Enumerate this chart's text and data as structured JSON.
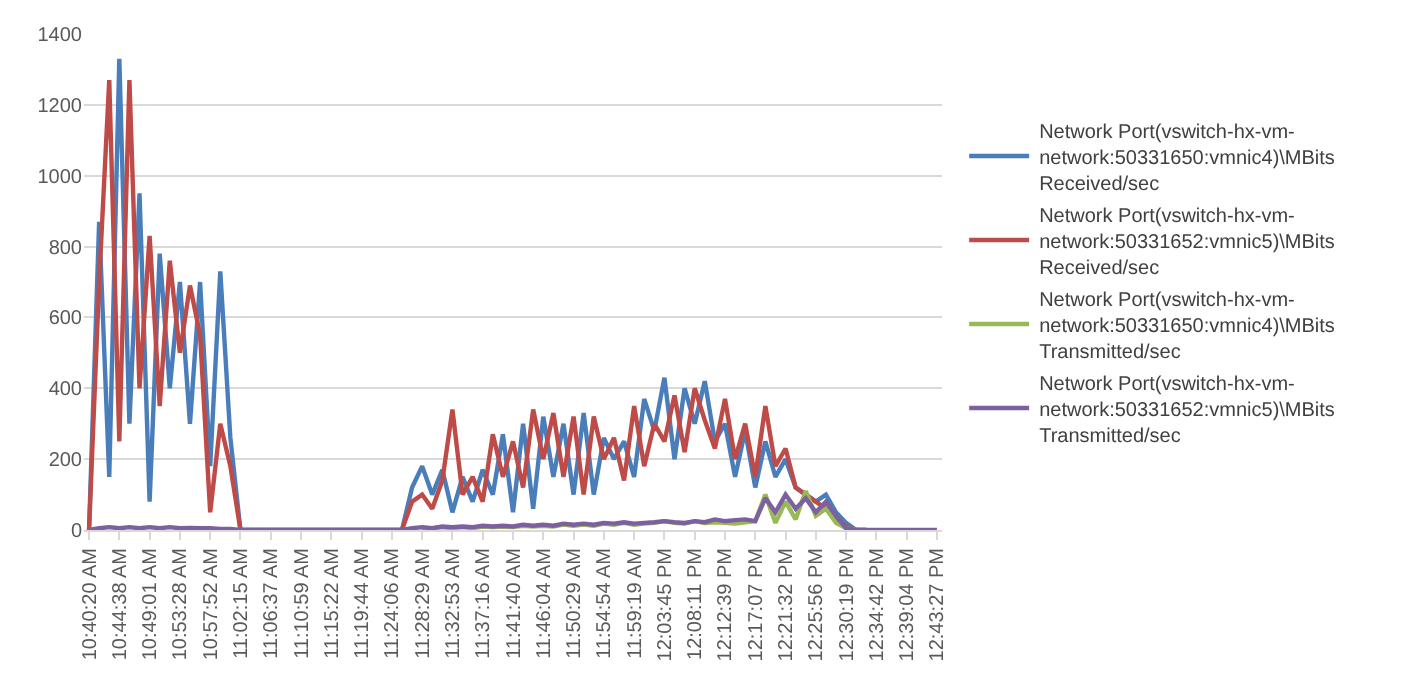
{
  "chart_data": {
    "type": "line",
    "categories": [
      "10:40:20 AM",
      null,
      null,
      "10:44:38 AM",
      null,
      null,
      "10:49:01 AM",
      null,
      null,
      "10:53:28 AM",
      null,
      null,
      "10:57:52 AM",
      null,
      null,
      "11:02:15 AM",
      null,
      null,
      "11:06:37 AM",
      null,
      null,
      "11:10:59 AM",
      null,
      null,
      "11:15:22 AM",
      null,
      null,
      "11:19:44 AM",
      null,
      null,
      "11:24:06 AM",
      null,
      null,
      "11:28:29 AM",
      null,
      null,
      "11:32:53 AM",
      null,
      null,
      "11:37:16 AM",
      null,
      null,
      "11:41:40 AM",
      null,
      null,
      "11:46:04 AM",
      null,
      null,
      "11:50:29 AM",
      null,
      null,
      "11:54:54 AM",
      null,
      null,
      "11:59:19 AM",
      null,
      null,
      "12:03:45 PM",
      null,
      null,
      "12:08:11 PM",
      null,
      null,
      "12:12:39 PM",
      null,
      null,
      "12:17:07 PM",
      null,
      null,
      "12:21:32 PM",
      null,
      null,
      "12:25:56 PM",
      null,
      null,
      "12:30:19 PM",
      null,
      null,
      "12:34:42 PM",
      null,
      null,
      "12:39:04 PM",
      null,
      null,
      "12:43:27 PM"
    ],
    "series": [
      {
        "name": "Network Port(vswitch-hx-vm-network:50331650:vmnic4)\\MBits Received/sec",
        "color": "#4a7ebb",
        "values": [
          0,
          870,
          150,
          1330,
          300,
          950,
          80,
          780,
          400,
          700,
          300,
          700,
          180,
          730,
          260,
          0,
          0,
          0,
          0,
          0,
          0,
          0,
          0,
          0,
          0,
          0,
          0,
          0,
          0,
          0,
          0,
          0,
          120,
          180,
          100,
          170,
          50,
          150,
          80,
          170,
          100,
          270,
          50,
          300,
          60,
          320,
          150,
          300,
          100,
          330,
          100,
          260,
          200,
          250,
          150,
          370,
          280,
          430,
          200,
          400,
          300,
          420,
          250,
          300,
          150,
          280,
          120,
          250,
          150,
          200,
          120,
          100,
          80,
          100,
          50,
          20,
          0,
          0,
          null,
          null,
          null,
          null,
          null,
          null,
          null
        ]
      },
      {
        "name": "Network Port(vswitch-hx-vm-network:50331652:vmnic5)\\MBits Received/sec",
        "color": "#be4b48",
        "values": [
          0,
          700,
          1270,
          250,
          1270,
          400,
          830,
          350,
          760,
          500,
          690,
          550,
          50,
          300,
          180,
          0,
          0,
          0,
          0,
          0,
          0,
          0,
          0,
          0,
          0,
          0,
          0,
          0,
          0,
          0,
          0,
          0,
          80,
          100,
          60,
          140,
          340,
          100,
          150,
          80,
          270,
          150,
          250,
          120,
          340,
          200,
          330,
          150,
          320,
          100,
          320,
          200,
          260,
          140,
          350,
          180,
          300,
          250,
          380,
          220,
          400,
          310,
          230,
          370,
          200,
          300,
          150,
          350,
          180,
          230,
          120,
          100,
          80,
          60,
          30,
          10,
          0,
          0,
          null,
          null,
          null,
          null,
          null,
          null,
          null
        ]
      },
      {
        "name": "Network Port(vswitch-hx-vm-network:50331650:vmnic4)\\MBits Transmitted/sec",
        "color": "#98b954",
        "values": [
          null,
          null,
          null,
          null,
          null,
          null,
          null,
          null,
          null,
          null,
          null,
          null,
          null,
          null,
          null,
          null,
          null,
          null,
          null,
          null,
          null,
          null,
          null,
          null,
          null,
          null,
          null,
          null,
          null,
          null,
          null,
          null,
          null,
          5,
          5,
          8,
          5,
          8,
          5,
          10,
          8,
          10,
          8,
          12,
          10,
          12,
          10,
          15,
          12,
          15,
          12,
          18,
          15,
          20,
          15,
          18,
          20,
          25,
          20,
          18,
          25,
          20,
          22,
          20,
          18,
          22,
          25,
          100,
          20,
          80,
          30,
          110,
          40,
          60,
          20,
          5,
          0,
          null,
          null,
          null,
          null,
          null,
          null,
          null,
          null
        ]
      },
      {
        "name": "Network Port(vswitch-hx-vm-network:50331652:vmnic5)\\MBits Transmitted/sec",
        "color": "#7d60a0",
        "values": [
          0,
          5,
          8,
          5,
          8,
          5,
          8,
          5,
          8,
          5,
          6,
          5,
          5,
          3,
          3,
          0,
          0,
          0,
          0,
          0,
          0,
          0,
          0,
          0,
          0,
          0,
          0,
          0,
          0,
          0,
          0,
          0,
          5,
          8,
          5,
          10,
          8,
          10,
          8,
          12,
          10,
          12,
          10,
          15,
          12,
          15,
          12,
          18,
          15,
          18,
          15,
          20,
          18,
          22,
          18,
          20,
          22,
          25,
          22,
          20,
          25,
          22,
          30,
          25,
          28,
          30,
          25,
          90,
          50,
          100,
          60,
          90,
          50,
          80,
          40,
          5,
          0,
          0,
          0,
          0,
          0,
          0,
          0,
          0,
          0
        ]
      }
    ],
    "ylim": [
      0,
      1400
    ],
    "yticks": [
      0,
      200,
      400,
      600,
      800,
      1000,
      1200,
      1400
    ],
    "grid": "y",
    "legend": "right",
    "marker": "none",
    "line_style": "solid"
  }
}
